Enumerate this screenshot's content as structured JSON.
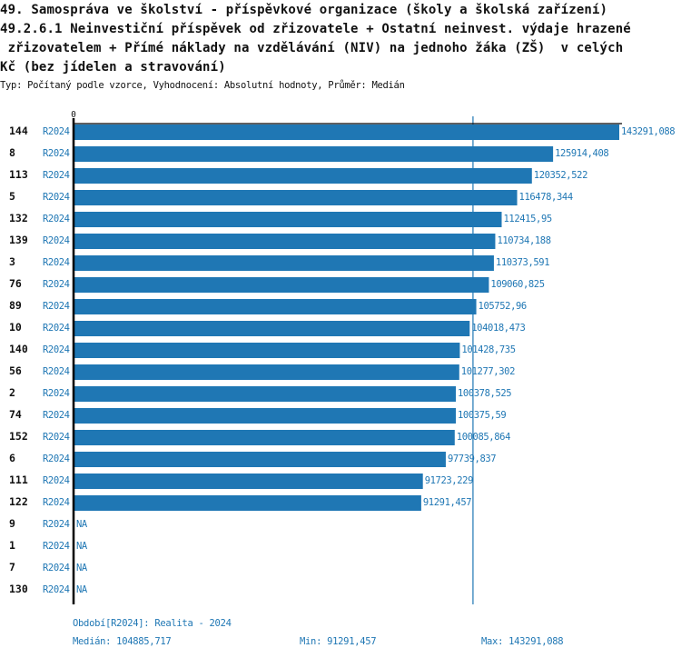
{
  "header": {
    "title_lines": [
      "49. Samospráva ve školství - příspěvkové organizace (školy a školská zařízení)",
      "49.2.6.1 Neinvestiční příspěvek od zřizovatele + Ostatní neinvest. výdaje hrazené",
      " zřizovatelem + Přímé náklady na vzdělávání (NIV) na jednoho žáka (ZŠ)  v celých",
      "Kč (bez jídelen a stravování)"
    ],
    "subtitle": "Typ: Počítaný podle vzorce, Vyhodnocení: Absolutní hodnoty, Průměr: Medián"
  },
  "colors": {
    "bar": "#1f77b4",
    "label": "#1f77b4",
    "axis": "#000000",
    "text": "#111111"
  },
  "chart_data": {
    "type": "bar",
    "orientation": "horizontal",
    "x_tick_labels": [
      "0"
    ],
    "xlim": [
      0,
      143291.088
    ],
    "median_line": 104885.717,
    "period_label": "R2024",
    "categories": [
      "144",
      "8",
      "113",
      "5",
      "132",
      "139",
      "3",
      "76",
      "89",
      "10",
      "140",
      "56",
      "2",
      "74",
      "152",
      "6",
      "111",
      "122",
      "9",
      "1",
      "7",
      "130"
    ],
    "values": [
      143291.088,
      125914.408,
      120352.522,
      116478.344,
      112415.95,
      110734.188,
      110373.591,
      109060.825,
      105752.96,
      104018.473,
      101428.735,
      101277.302,
      100378.525,
      100375.59,
      100085.864,
      97739.837,
      91723.229,
      91291.457,
      null,
      null,
      null,
      null
    ],
    "value_labels": [
      "143291,088",
      "125914,408",
      "120352,522",
      "116478,344",
      "112415,95",
      "110734,188",
      "110373,591",
      "109060,825",
      "105752,96",
      "104018,473",
      "101428,735",
      "101277,302",
      "100378,525",
      "100375,59",
      "100085,864",
      "97739,837",
      "91723,229",
      "91291,457",
      "NA",
      "NA",
      "NA",
      "NA"
    ],
    "grid": false,
    "legend": "none"
  },
  "footer": {
    "period": "Období[R2024]: Realita - 2024",
    "median": "Medián: 104885,717",
    "min": "Min: 91291,457",
    "max": "Max: 143291,088"
  }
}
